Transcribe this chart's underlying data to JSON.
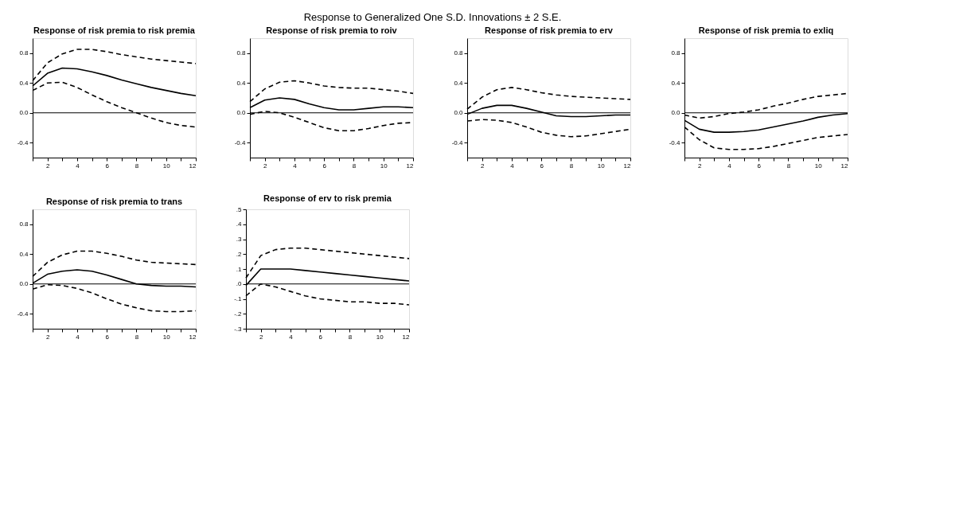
{
  "chart_data": [
    {
      "type": "line",
      "title": "Response of risk premia to risk premia",
      "annotations": [
        "Response to Generalized One S.D. Innovations ± 2 S.E."
      ],
      "x": [
        1,
        2,
        3,
        4,
        5,
        6,
        7,
        8,
        9,
        10,
        11,
        12
      ],
      "series": [
        {
          "color": "#000000",
          "line_style": "solid",
          "values": [
            0.36,
            0.53,
            0.6,
            0.59,
            0.55,
            0.5,
            0.44,
            0.39,
            0.34,
            0.3,
            0.26,
            0.23
          ]
        },
        {
          "color": "#000000",
          "line_style": "dashed",
          "values": [
            0.43,
            0.67,
            0.79,
            0.85,
            0.85,
            0.82,
            0.78,
            0.75,
            0.72,
            0.7,
            0.68,
            0.66
          ]
        },
        {
          "color": "#000000",
          "line_style": "dashed",
          "values": [
            0.3,
            0.4,
            0.41,
            0.34,
            0.24,
            0.15,
            0.07,
            0.0,
            -0.07,
            -0.13,
            -0.17,
            -0.19
          ]
        }
      ],
      "xlim": [
        1,
        12
      ],
      "xticks": [
        {
          "value": 1,
          "label": null
        },
        2,
        {
          "value": 3,
          "label": null
        },
        4,
        {
          "value": 5,
          "label": null
        },
        6,
        {
          "value": 7,
          "label": null
        },
        8,
        {
          "value": 9,
          "label": null
        },
        10,
        {
          "value": 11,
          "label": null
        },
        12
      ],
      "ylim": [
        -0.6,
        1.0
      ],
      "yticks": [
        {
          "value": -0.4,
          "label": "-0.4"
        },
        {
          "value": 0,
          "label": "0.0"
        },
        {
          "value": 0.4,
          "label": "0.4"
        },
        {
          "value": 0.8,
          "label": "0.8"
        }
      ],
      "ref_lines": [
        {
          "axis": "y",
          "value": 0,
          "color": "#000000"
        }
      ],
      "grid": false
    },
    {
      "type": "line",
      "title": "Response of risk premia to roiv",
      "x": [
        1,
        2,
        3,
        4,
        5,
        6,
        7,
        8,
        9,
        10,
        11,
        12
      ],
      "series": [
        {
          "color": "#000000",
          "line_style": "solid",
          "values": [
            0.07,
            0.17,
            0.2,
            0.18,
            0.12,
            0.07,
            0.04,
            0.04,
            0.06,
            0.08,
            0.08,
            0.07
          ]
        },
        {
          "color": "#000000",
          "line_style": "dashed",
          "values": [
            0.15,
            0.32,
            0.41,
            0.43,
            0.4,
            0.36,
            0.34,
            0.33,
            0.33,
            0.31,
            0.29,
            0.26
          ]
        },
        {
          "color": "#000000",
          "line_style": "dashed",
          "values": [
            -0.02,
            0.02,
            0.0,
            -0.06,
            -0.13,
            -0.2,
            -0.24,
            -0.24,
            -0.21,
            -0.17,
            -0.14,
            -0.13
          ]
        }
      ],
      "xlim": [
        1,
        12
      ],
      "xticks": [
        {
          "value": 1,
          "label": null
        },
        2,
        {
          "value": 3,
          "label": null
        },
        4,
        {
          "value": 5,
          "label": null
        },
        6,
        {
          "value": 7,
          "label": null
        },
        8,
        {
          "value": 9,
          "label": null
        },
        10,
        {
          "value": 11,
          "label": null
        },
        12
      ],
      "ylim": [
        -0.6,
        1.0
      ],
      "yticks": [
        {
          "value": -0.4,
          "label": "-0.4"
        },
        {
          "value": 0,
          "label": "0.0"
        },
        {
          "value": 0.4,
          "label": "0.4"
        },
        {
          "value": 0.8,
          "label": "0.8"
        }
      ],
      "ref_lines": [
        {
          "axis": "y",
          "value": 0,
          "color": "#000000"
        }
      ],
      "grid": false
    },
    {
      "type": "line",
      "title": "Response of risk premia to erv",
      "x": [
        1,
        2,
        3,
        4,
        5,
        6,
        7,
        8,
        9,
        10,
        11,
        12
      ],
      "series": [
        {
          "color": "#000000",
          "line_style": "solid",
          "values": [
            -0.02,
            0.06,
            0.1,
            0.1,
            0.06,
            0.01,
            -0.04,
            -0.05,
            -0.05,
            -0.04,
            -0.03,
            -0.03
          ]
        },
        {
          "color": "#000000",
          "line_style": "dashed",
          "values": [
            0.05,
            0.21,
            0.31,
            0.34,
            0.31,
            0.27,
            0.24,
            0.22,
            0.21,
            0.2,
            0.19,
            0.18
          ]
        },
        {
          "color": "#000000",
          "line_style": "dashed",
          "values": [
            -0.11,
            -0.09,
            -0.1,
            -0.13,
            -0.19,
            -0.26,
            -0.3,
            -0.32,
            -0.31,
            -0.28,
            -0.25,
            -0.22
          ]
        }
      ],
      "xlim": [
        1,
        12
      ],
      "xticks": [
        {
          "value": 1,
          "label": null
        },
        2,
        {
          "value": 3,
          "label": null
        },
        4,
        {
          "value": 5,
          "label": null
        },
        6,
        {
          "value": 7,
          "label": null
        },
        8,
        {
          "value": 9,
          "label": null
        },
        10,
        {
          "value": 11,
          "label": null
        },
        12
      ],
      "ylim": [
        -0.6,
        1.0
      ],
      "yticks": [
        {
          "value": -0.4,
          "label": "-0.4"
        },
        {
          "value": 0,
          "label": "0.0"
        },
        {
          "value": 0.4,
          "label": "0.4"
        },
        {
          "value": 0.8,
          "label": "0.8"
        }
      ],
      "ref_lines": [
        {
          "axis": "y",
          "value": 0,
          "color": "#000000"
        }
      ],
      "grid": false
    },
    {
      "type": "line",
      "title": "Response of risk premia to exliq",
      "x": [
        1,
        2,
        3,
        4,
        5,
        6,
        7,
        8,
        9,
        10,
        11,
        12
      ],
      "series": [
        {
          "color": "#000000",
          "line_style": "solid",
          "values": [
            -0.1,
            -0.22,
            -0.26,
            -0.26,
            -0.25,
            -0.23,
            -0.19,
            -0.15,
            -0.11,
            -0.06,
            -0.03,
            -0.01
          ]
        },
        {
          "color": "#000000",
          "line_style": "dashed",
          "values": [
            -0.03,
            -0.07,
            -0.05,
            -0.01,
            0.01,
            0.04,
            0.09,
            0.13,
            0.18,
            0.22,
            0.24,
            0.26
          ]
        },
        {
          "color": "#000000",
          "line_style": "dashed",
          "values": [
            -0.19,
            -0.36,
            -0.47,
            -0.49,
            -0.49,
            -0.48,
            -0.45,
            -0.41,
            -0.37,
            -0.33,
            -0.31,
            -0.29
          ]
        }
      ],
      "xlim": [
        1,
        12
      ],
      "xticks": [
        {
          "value": 1,
          "label": null
        },
        2,
        {
          "value": 3,
          "label": null
        },
        4,
        {
          "value": 5,
          "label": null
        },
        6,
        {
          "value": 7,
          "label": null
        },
        8,
        {
          "value": 9,
          "label": null
        },
        10,
        {
          "value": 11,
          "label": null
        },
        12
      ],
      "ylim": [
        -0.6,
        1.0
      ],
      "yticks": [
        {
          "value": -0.4,
          "label": "-0.4"
        },
        {
          "value": 0,
          "label": "0.0"
        },
        {
          "value": 0.4,
          "label": "0.4"
        },
        {
          "value": 0.8,
          "label": "0.8"
        }
      ],
      "ref_lines": [
        {
          "axis": "y",
          "value": 0,
          "color": "#000000"
        }
      ],
      "grid": false
    },
    {
      "type": "line",
      "title": "Response of risk premia to trans",
      "x": [
        1,
        2,
        3,
        4,
        5,
        6,
        7,
        8,
        9,
        10,
        11,
        12
      ],
      "series": [
        {
          "color": "#000000",
          "line_style": "solid",
          "values": [
            0.01,
            0.13,
            0.17,
            0.19,
            0.17,
            0.12,
            0.06,
            0.0,
            -0.02,
            -0.03,
            -0.03,
            -0.04
          ]
        },
        {
          "color": "#000000",
          "line_style": "dashed",
          "values": [
            0.1,
            0.29,
            0.39,
            0.44,
            0.44,
            0.41,
            0.37,
            0.32,
            0.29,
            0.28,
            0.27,
            0.26
          ]
        },
        {
          "color": "#000000",
          "line_style": "dashed",
          "values": [
            -0.07,
            -0.01,
            -0.02,
            -0.06,
            -0.12,
            -0.2,
            -0.27,
            -0.32,
            -0.36,
            -0.37,
            -0.37,
            -0.36
          ]
        }
      ],
      "xlim": [
        1,
        12
      ],
      "xticks": [
        {
          "value": 1,
          "label": null
        },
        2,
        {
          "value": 3,
          "label": null
        },
        4,
        {
          "value": 5,
          "label": null
        },
        6,
        {
          "value": 7,
          "label": null
        },
        8,
        {
          "value": 9,
          "label": null
        },
        10,
        {
          "value": 11,
          "label": null
        },
        12
      ],
      "ylim": [
        -0.6,
        1.0
      ],
      "yticks": [
        {
          "value": -0.4,
          "label": "-0.4"
        },
        {
          "value": 0,
          "label": "0.0"
        },
        {
          "value": 0.4,
          "label": "0.4"
        },
        {
          "value": 0.8,
          "label": "0.8"
        }
      ],
      "ref_lines": [
        {
          "axis": "y",
          "value": 0,
          "color": "#000000"
        }
      ],
      "grid": false
    },
    {
      "type": "line",
      "title": "Response of erv to risk premia",
      "x": [
        1,
        2,
        3,
        4,
        5,
        6,
        7,
        8,
        9,
        10,
        11,
        12
      ],
      "series": [
        {
          "color": "#000000",
          "line_style": "solid",
          "values": [
            -0.01,
            0.1,
            0.1,
            0.1,
            0.09,
            0.08,
            0.07,
            0.06,
            0.05,
            0.04,
            0.03,
            0.02
          ]
        },
        {
          "color": "#000000",
          "line_style": "dashed",
          "values": [
            0.04,
            0.19,
            0.23,
            0.24,
            0.24,
            0.23,
            0.22,
            0.21,
            0.2,
            0.19,
            0.18,
            0.17
          ]
        },
        {
          "color": "#000000",
          "line_style": "dashed",
          "values": [
            -0.08,
            0.0,
            -0.02,
            -0.05,
            -0.08,
            -0.1,
            -0.11,
            -0.12,
            -0.12,
            -0.13,
            -0.13,
            -0.14
          ]
        }
      ],
      "xlim": [
        1,
        12
      ],
      "xticks": [
        {
          "value": 1,
          "label": null
        },
        2,
        {
          "value": 3,
          "label": null
        },
        4,
        {
          "value": 5,
          "label": null
        },
        6,
        {
          "value": 7,
          "label": null
        },
        8,
        {
          "value": 9,
          "label": null
        },
        10,
        {
          "value": 11,
          "label": null
        },
        12
      ],
      "ylim": [
        -0.3,
        0.5
      ],
      "yticks": [
        {
          "value": -0.3,
          "label": "-.3"
        },
        {
          "value": -0.2,
          "label": "-.2"
        },
        {
          "value": -0.1,
          "label": "-.1"
        },
        {
          "value": 0,
          "label": ".0"
        },
        {
          "value": 0.1,
          "label": ".1"
        },
        {
          "value": 0.2,
          "label": ".2"
        },
        {
          "value": 0.3,
          "label": ".3"
        },
        {
          "value": 0.4,
          "label": ".4"
        },
        {
          "value": 0.5,
          "label": ".5"
        }
      ],
      "ref_lines": [
        {
          "axis": "y",
          "value": 0,
          "color": "#000000"
        }
      ],
      "grid": false
    }
  ]
}
